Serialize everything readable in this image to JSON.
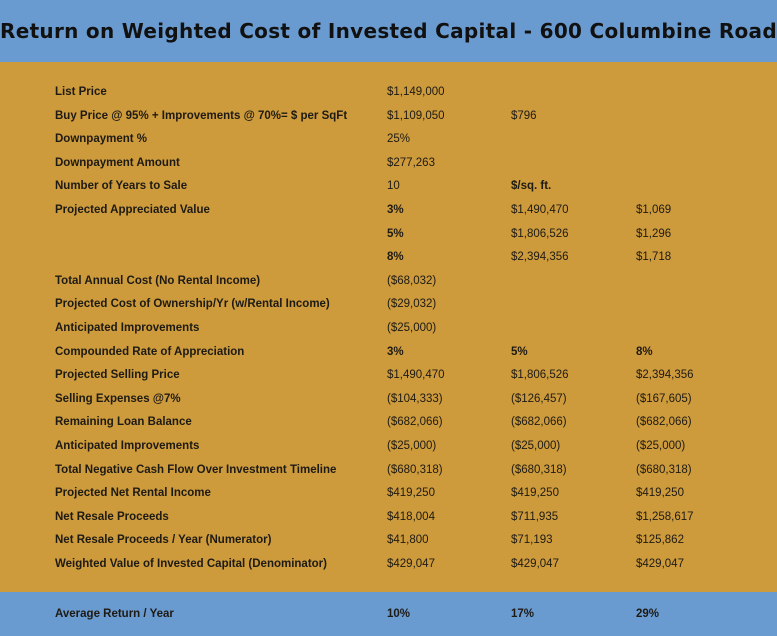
{
  "title": "Return on Weighted Cost of Invested Capital - 600 Columbine Road",
  "rows": [
    {
      "label": "List Price",
      "c1": "$1,149,000",
      "c2": "",
      "c3": ""
    },
    {
      "label": "Buy Price @ 95% + Improvements @ 70%= $ per SqFt",
      "c1": "$1,109,050",
      "c2": "$796",
      "c3": ""
    },
    {
      "label": "Downpayment %",
      "c1": "25%",
      "c2": "",
      "c3": ""
    },
    {
      "label": "Downpayment Amount",
      "c1": "$277,263",
      "c2": "",
      "c3": ""
    },
    {
      "label": "Number of Years to Sale",
      "c1": "10",
      "c2": "$/sq. ft.",
      "c3": ""
    },
    {
      "label": "Projected Appreciated Value",
      "c1": "3%",
      "c2": "$1,490,470",
      "c3": "$1,069"
    },
    {
      "label": "",
      "c1": "5%",
      "c2": "$1,806,526",
      "c3": "$1,296"
    },
    {
      "label": "",
      "c1": "8%",
      "c2": "$2,394,356",
      "c3": "$1,718"
    },
    {
      "label": "Total Annual Cost (No Rental Income)",
      "c1": "($68,032)",
      "c2": "",
      "c3": ""
    },
    {
      "label": "Projected Cost of Ownership/Yr (w/Rental Income)",
      "c1": "($29,032)",
      "c2": "",
      "c3": ""
    },
    {
      "label": "Anticipated Improvements",
      "c1": "($25,000)",
      "c2": "",
      "c3": ""
    },
    {
      "label": "Compounded Rate of Appreciation",
      "c1": "3%",
      "c2": "5%",
      "c3": "8%"
    },
    {
      "label": "Projected Selling Price",
      "c1": "$1,490,470",
      "c2": "$1,806,526",
      "c3": "$2,394,356"
    },
    {
      "label": "Selling Expenses @7%",
      "c1": "($104,333)",
      "c2": "($126,457)",
      "c3": "($167,605)"
    },
    {
      "label": "Remaining Loan Balance",
      "c1": "($682,066)",
      "c2": "($682,066)",
      "c3": "($682,066)"
    },
    {
      "label": "Anticipated Improvements",
      "c1": "($25,000)",
      "c2": "($25,000)",
      "c3": "($25,000)"
    },
    {
      "label": "Total Negative Cash Flow Over Investment Timeline",
      "c1": "($680,318)",
      "c2": "($680,318)",
      "c3": "($680,318)"
    },
    {
      "label": "Projected Net Rental Income",
      "c1": "$419,250",
      "c2": "$419,250",
      "c3": "$419,250"
    },
    {
      "label": "Net Resale Proceeds",
      "c1": "$418,004",
      "c2": "$711,935",
      "c3": "$1,258,617"
    },
    {
      "label": "Net Resale Proceeds / Year (Numerator)",
      "c1": "$41,800",
      "c2": "$71,193",
      "c3": "$125,862"
    },
    {
      "label": "Weighted Value of Invested Capital (Denominator)",
      "c1": "$429,047",
      "c2": "$429,047",
      "c3": "$429,047"
    }
  ],
  "footer": {
    "label": "Average Return / Year",
    "c1": "10%",
    "c2": "17%",
    "c3": "29%"
  },
  "colors": {
    "header_bg": "#6A9BD0",
    "body_bg": "#CD9B3C"
  }
}
